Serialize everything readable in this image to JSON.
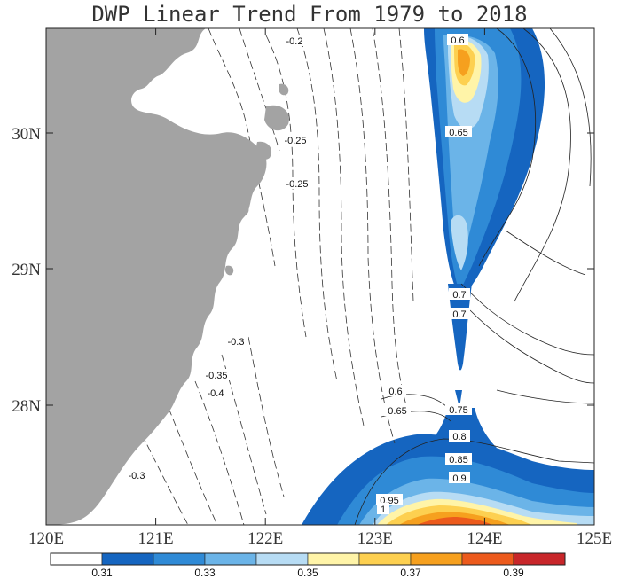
{
  "title": "DWP Linear Trend From 1979 to 2018",
  "x_axis": {
    "ticks": [
      "120E",
      "121E",
      "122E",
      "123E",
      "124E",
      "125E"
    ]
  },
  "y_axis": {
    "ticks": [
      "30N",
      "29N",
      "28N"
    ]
  },
  "colorbar": {
    "labels": [
      "0.31",
      "0.33",
      "0.35",
      "0.37",
      "0.39"
    ],
    "colors": [
      "#ffffff",
      "#1565c0",
      "#2f8ad6",
      "#6bb4e8",
      "#b7dcf4",
      "#fff4a8",
      "#fdd050",
      "#f6a01e",
      "#ec5a1c",
      "#c8262a"
    ]
  },
  "contour_labels": [
    "-0.2",
    "-0.25",
    "-0.25",
    "-0.3",
    "-0.35",
    "-0.4",
    "-0.3",
    "0.6",
    "0.65",
    "0.7",
    "0.7",
    "0.6",
    "0.65",
    "0.75",
    "0.8",
    "0.85",
    "0.9",
    "0.95",
    "1"
  ],
  "land_color": "#a3a3a3"
}
